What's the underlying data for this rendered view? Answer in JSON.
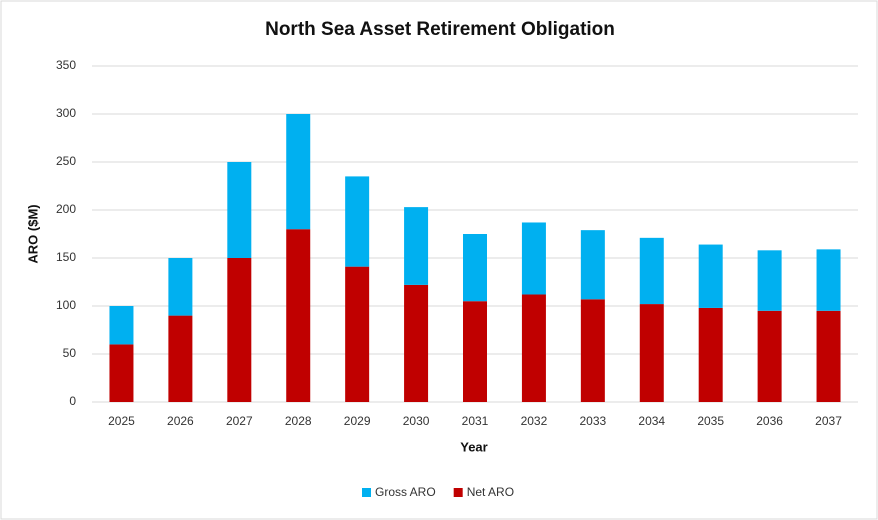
{
  "chart_data": {
    "type": "stacked-bar",
    "title": "North Sea Asset Retirement Obligation",
    "x_label": "Year",
    "y_label": "ARO ($M)",
    "categories": [
      "2025",
      "2026",
      "2027",
      "2028",
      "2029",
      "2030",
      "2031",
      "2032",
      "2033",
      "2034",
      "2035",
      "2036",
      "2037"
    ],
    "series": [
      {
        "name": "Net ARO",
        "color": "#c00000",
        "values": [
          60,
          90,
          150,
          180,
          141,
          122,
          105,
          112,
          107,
          102,
          98,
          95,
          95
        ]
      },
      {
        "name": "Gross ARO",
        "color": "#00b0f0",
        "values": [
          40,
          60,
          100,
          120,
          94,
          81,
          70,
          75,
          72,
          69,
          66,
          63,
          64
        ]
      }
    ],
    "ylim": [
      0,
      350
    ],
    "yticks": [
      0,
      50,
      100,
      150,
      200,
      250,
      300,
      350
    ],
    "grid": true,
    "legend": "bottom"
  }
}
